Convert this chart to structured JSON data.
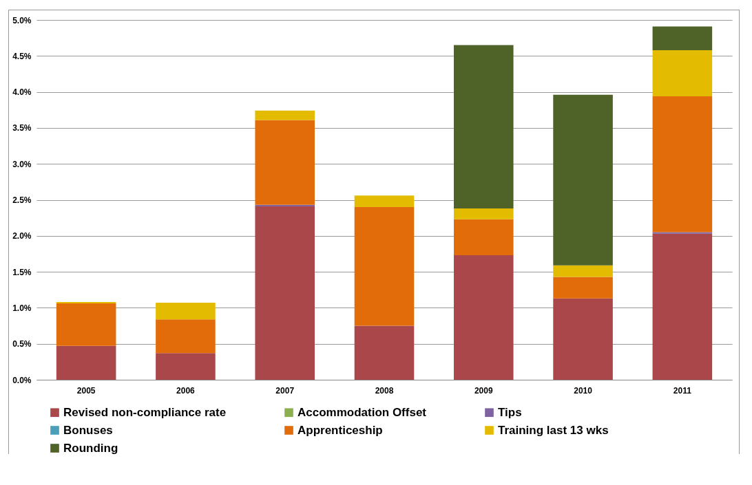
{
  "chart_data": {
    "type": "bar",
    "stacked": true,
    "categories": [
      "2005",
      "2006",
      "2007",
      "2008",
      "2009",
      "2010",
      "2011"
    ],
    "series": [
      {
        "name": "Revised non-compliance  rate",
        "color": "#a9474a",
        "values": [
          0.47,
          0.37,
          2.41,
          0.75,
          1.73,
          1.13,
          2.03
        ]
      },
      {
        "name": "Accommodation  Offset",
        "color": "#8cb050",
        "values": [
          null,
          null,
          null,
          null,
          null,
          null,
          null
        ]
      },
      {
        "name": "Tips",
        "color": "#7e62a1",
        "values": [
          0,
          0,
          0.02,
          0,
          0,
          0,
          0.02
        ]
      },
      {
        "name": "Bonuses",
        "color": "#4aa0b8",
        "values": [
          null,
          null,
          null,
          null,
          null,
          null,
          null
        ]
      },
      {
        "name": "Apprenticeship",
        "color": "#e36c0a",
        "values": [
          0.59,
          0.47,
          1.18,
          1.65,
          0.5,
          0.3,
          1.89
        ]
      },
      {
        "name": "Training last 13 wks",
        "color": "#e3bb00",
        "values": [
          0.02,
          0.23,
          0.13,
          0.16,
          0.15,
          0.16,
          0.64
        ]
      },
      {
        "name": "Rounding",
        "color": "#4f6228",
        "values": [
          0,
          0,
          0,
          0,
          2.27,
          2.37,
          0.33
        ]
      }
    ],
    "ylim": [
      0,
      5
    ],
    "yticks": [
      {
        "value": 0,
        "label": "0.0%"
      },
      {
        "value": 0.5,
        "label": "0.5%"
      },
      {
        "value": 1,
        "label": "1.0%"
      },
      {
        "value": 1.5,
        "label": "1.5%"
      },
      {
        "value": 2,
        "label": "2.0%"
      },
      {
        "value": 2.5,
        "label": "2.5%"
      },
      {
        "value": 3,
        "label": "3.0%"
      },
      {
        "value": 3.5,
        "label": "3.5%"
      },
      {
        "value": 4,
        "label": "4.0%"
      },
      {
        "value": 4.5,
        "label": "4.5%"
      },
      {
        "value": 5,
        "label": "5.0%"
      }
    ],
    "grid": "y",
    "legend": "bottom"
  }
}
